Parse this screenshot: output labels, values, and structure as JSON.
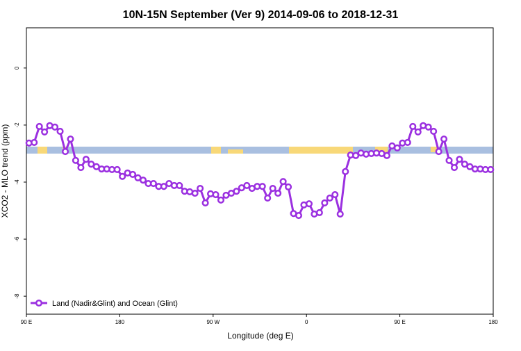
{
  "chart_data": {
    "type": "line",
    "title": "10N-15N September (Ver 9)   2014-09-06 to 2018-12-31",
    "x_label": "Longitude (deg E)",
    "y_label": "XCO2 - MLO trend (ppm)",
    "xlim": [
      90,
      540
    ],
    "ylim": [
      -8.63,
      1.41
    ],
    "xticks": [
      {
        "value": 90,
        "label": "90 E"
      },
      180,
      {
        "value": 270,
        "label": "90 W"
      },
      {
        "value": 360,
        "label": "0"
      },
      {
        "value": 450,
        "label": "90 E"
      },
      {
        "value": 540,
        "label": "180"
      }
    ],
    "yticks": [
      -8,
      -6,
      -4,
      -2,
      0
    ],
    "legend_position": "bottom-left",
    "x": [
      92.5,
      97.5,
      102.5,
      107.5,
      112.5,
      117.5,
      122.5,
      127.5,
      132.5,
      137.5,
      142.5,
      147.5,
      152.5,
      157.5,
      162.5,
      167.5,
      172.5,
      177.5,
      182.5,
      187.5,
      192.5,
      197.5,
      202.5,
      207.5,
      212.5,
      217.5,
      222.5,
      227.5,
      232.5,
      237.5,
      242.5,
      247.5,
      252.5,
      257.5,
      262.5,
      267.5,
      272.5,
      277.5,
      282.5,
      287.5,
      292.5,
      297.5,
      302.5,
      307.5,
      312.5,
      317.5,
      322.5,
      327.5,
      332.5,
      337.5,
      342.5,
      347.5,
      352.5,
      357.5,
      362.5,
      367.5,
      372.5,
      377.5,
      382.5,
      387.5,
      392.5,
      397.5,
      402.5,
      407.5,
      412.5,
      417.5,
      422.5,
      427.5,
      432.5,
      437.5,
      442.5,
      447.5,
      452.5,
      457.5,
      462.5,
      467.5,
      472.5,
      477.5,
      482.5,
      487.5,
      492.5,
      497.5,
      502.5,
      507.5,
      512.5,
      517.5,
      522.5,
      527.5,
      532.5,
      537.5
    ],
    "series": [
      {
        "name": "Land (Nadir&Glint) and Ocean (Glint)",
        "color": "#9b30e0",
        "values": [
          -2.63,
          -2.61,
          -2.05,
          -2.24,
          -2.02,
          -2.07,
          -2.22,
          -2.93,
          -2.49,
          -3.24,
          -3.49,
          -3.2,
          -3.37,
          -3.46,
          -3.54,
          -3.54,
          -3.56,
          -3.56,
          -3.8,
          -3.68,
          -3.73,
          -3.85,
          -3.93,
          -4.05,
          -4.05,
          -4.15,
          -4.15,
          -4.05,
          -4.12,
          -4.12,
          -4.32,
          -4.34,
          -4.39,
          -4.22,
          -4.73,
          -4.41,
          -4.44,
          -4.63,
          -4.46,
          -4.39,
          -4.32,
          -4.2,
          -4.12,
          -4.22,
          -4.15,
          -4.15,
          -4.56,
          -4.22,
          -4.39,
          -3.98,
          -4.17,
          -5.1,
          -5.17,
          -4.8,
          -4.76,
          -5.12,
          -5.07,
          -4.73,
          -4.56,
          -4.44,
          -5.12,
          -3.63,
          -3.05,
          -3.07,
          -2.98,
          -3.02,
          -3.0,
          -2.98,
          -3.0,
          -3.07,
          -2.73,
          -2.8,
          -2.63,
          -2.61,
          -2.05,
          -2.24,
          -2.02,
          -2.07,
          -2.22,
          -2.93,
          -2.49,
          -3.24,
          -3.49,
          -3.2,
          -3.37,
          -3.46,
          -3.54,
          -3.54,
          -3.56,
          -3.56
        ]
      }
    ]
  }
}
